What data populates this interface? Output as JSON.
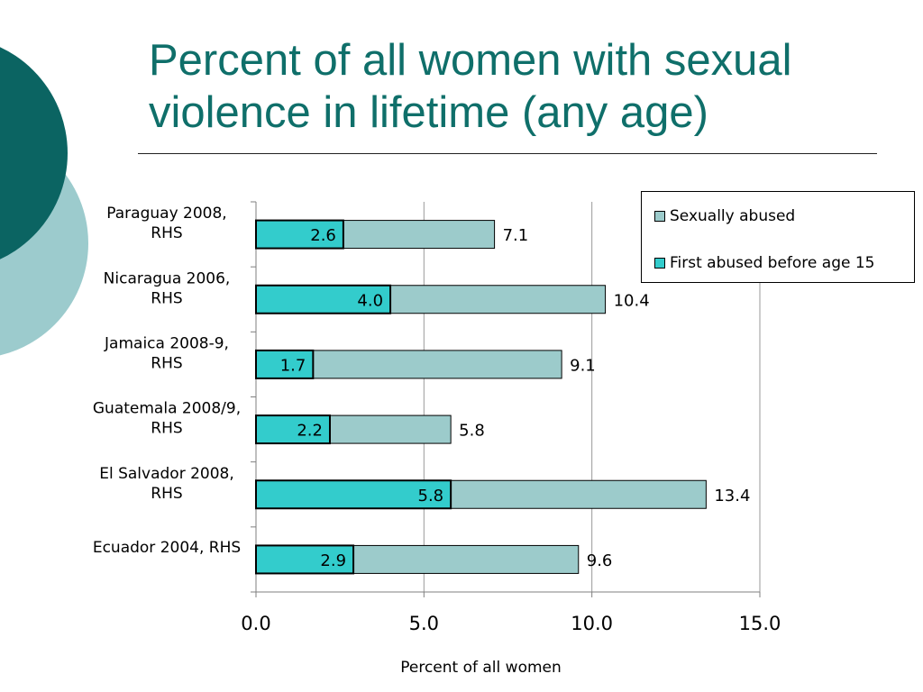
{
  "slide": {
    "title": "Percent of all women with sexual violence in lifetime (any age)"
  },
  "theme": {
    "title_color": "#0f6f6a",
    "deco_dark": "#0b6462",
    "deco_light": "#9ccbcd"
  },
  "chart_data": {
    "type": "bar",
    "orientation": "horizontal",
    "stacked": false,
    "overlapped": true,
    "categories": [
      [
        "Paraguay 2008,",
        "RHS"
      ],
      [
        "Nicaragua 2006,",
        "RHS"
      ],
      [
        "Jamaica 2008-9,",
        "RHS"
      ],
      [
        "Guatemala 2008/9,",
        "RHS"
      ],
      [
        "El Salvador 2008,",
        "RHS"
      ],
      [
        "Ecuador 2004, RHS"
      ]
    ],
    "series": [
      {
        "name": "Sexually abused",
        "color": "#9ccbcb",
        "values": [
          7.1,
          10.4,
          9.1,
          5.8,
          13.4,
          9.6
        ]
      },
      {
        "name": "First abused before age 15",
        "color": "#33cccc",
        "values": [
          2.6,
          4.0,
          1.7,
          2.2,
          5.8,
          2.9
        ]
      }
    ],
    "xlim": [
      0,
      15
    ],
    "x_ticks": [
      "0.0",
      "5.0",
      "10.0",
      "15.0"
    ],
    "xlabel": "Percent of all women",
    "grid": "vertical",
    "legend": "top-right"
  }
}
